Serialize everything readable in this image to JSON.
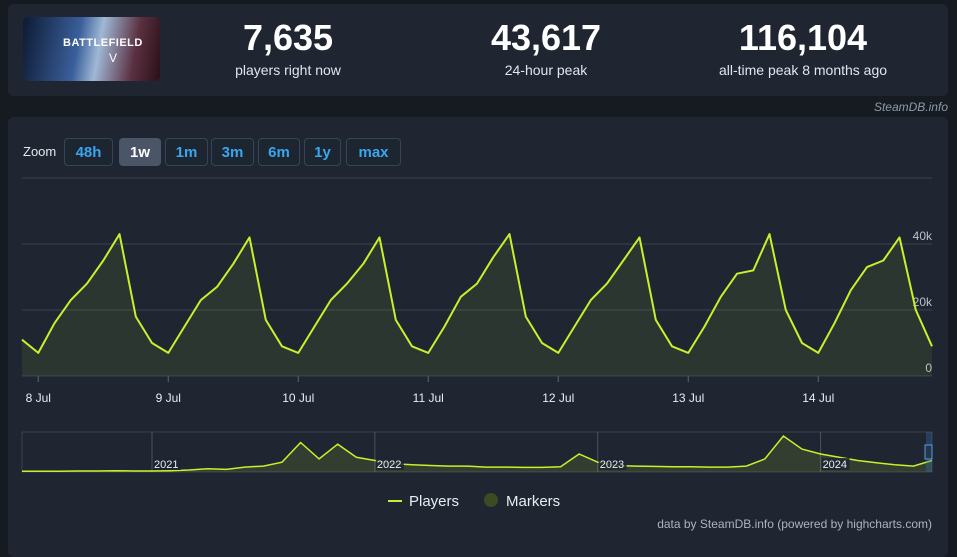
{
  "header": {
    "logo": "BATTLEFIELD",
    "logo_sub": "V",
    "stats": [
      {
        "value": "7,635",
        "label": "players right now"
      },
      {
        "value": "43,617",
        "label": "24-hour peak"
      },
      {
        "value": "116,104",
        "label": "all-time peak 8 months ago"
      }
    ]
  },
  "site_credit": "SteamDB.info",
  "zoom": {
    "label": "Zoom",
    "buttons": [
      "48h",
      "1w",
      "1m",
      "3m",
      "6m",
      "1y",
      "max"
    ],
    "active": "1w"
  },
  "chart_data": [
    {
      "type": "line",
      "categories": [
        null,
        "8 Jul",
        null,
        null,
        null,
        null,
        null,
        null,
        null,
        "9 Jul",
        null,
        null,
        null,
        null,
        null,
        null,
        null,
        "10 Jul",
        null,
        null,
        null,
        null,
        null,
        null,
        null,
        "11 Jul",
        null,
        null,
        null,
        null,
        null,
        null,
        null,
        "12 Jul",
        null,
        null,
        null,
        null,
        null,
        null,
        null,
        "13 Jul",
        null,
        null,
        null,
        null,
        null,
        null,
        null,
        "14 Jul",
        null,
        null,
        null,
        null,
        null,
        null,
        null
      ],
      "series": [
        {
          "name": "Players",
          "color": "#c8f02c",
          "values": [
            11000,
            7000,
            16000,
            23000,
            28000,
            35000,
            43000,
            18000,
            10000,
            7000,
            15000,
            23000,
            27000,
            34000,
            42000,
            17000,
            9000,
            7000,
            15000,
            23000,
            28000,
            34000,
            42000,
            17000,
            9000,
            7000,
            15000,
            24000,
            28000,
            36000,
            43000,
            18000,
            10000,
            7000,
            15000,
            23000,
            28000,
            35000,
            42000,
            17000,
            9000,
            7000,
            15000,
            24000,
            31000,
            32000,
            43000,
            20000,
            10000,
            7000,
            16000,
            26000,
            33000,
            35000,
            42000,
            20000,
            9000
          ]
        }
      ],
      "markers": {
        "name": "Markers",
        "color": "#3d4a22"
      },
      "ylim": [
        0,
        60000
      ],
      "yticks": [
        {
          "value": 0,
          "label": "0"
        },
        {
          "value": 20000,
          "label": "20k"
        },
        {
          "value": 40000,
          "label": "40k"
        }
      ],
      "grid": true
    },
    {
      "type": "area",
      "categories": [
        null,
        null,
        null,
        null,
        null,
        null,
        null,
        "2021",
        null,
        null,
        null,
        null,
        null,
        null,
        null,
        null,
        null,
        null,
        null,
        "2022",
        null,
        null,
        null,
        null,
        null,
        null,
        null,
        null,
        null,
        null,
        null,
        "2023",
        null,
        null,
        null,
        null,
        null,
        null,
        null,
        null,
        null,
        null,
        null,
        "2024",
        null,
        null,
        null,
        null,
        null,
        null
      ],
      "series": [
        {
          "name": "Players",
          "color": "#c8f02c",
          "values": [
            2000,
            2000,
            2000,
            3000,
            3000,
            4000,
            3000,
            3000,
            4000,
            6000,
            10000,
            8000,
            15000,
            18000,
            30000,
            90000,
            40000,
            85000,
            45000,
            35000,
            25000,
            22000,
            20000,
            18000,
            18000,
            15000,
            15000,
            14000,
            14000,
            16000,
            55000,
            30000,
            20000,
            18000,
            17000,
            16000,
            16000,
            15000,
            15000,
            18000,
            40000,
            110000,
            70000,
            55000,
            45000,
            35000,
            28000,
            22000,
            18000,
            35000
          ]
        }
      ]
    }
  ],
  "footer_credit": "data by SteamDB.info (powered by highcharts.com)"
}
